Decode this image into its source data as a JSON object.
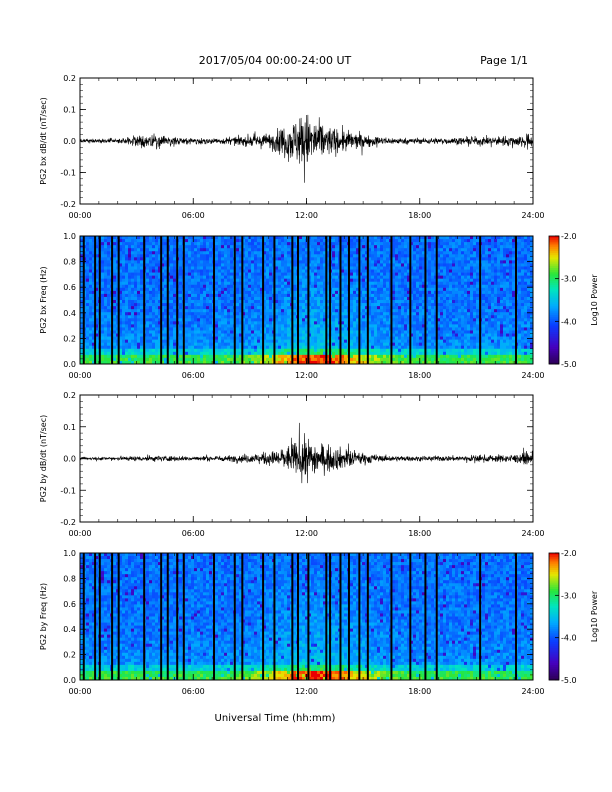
{
  "header": {
    "title": "2017/05/04  00:00-24:00 UT",
    "page": "Page 1/1"
  },
  "x_axis": {
    "label": "Universal Time (hh:mm)",
    "ticks": [
      "00:00",
      "06:00",
      "12:00",
      "18:00",
      "24:00"
    ]
  },
  "chart_data": [
    {
      "type": "line",
      "ylabel": "PG2 bx dB/dt (nT/sec)",
      "xlim": [
        0,
        24
      ],
      "ylim": [
        -0.2,
        0.2
      ],
      "yticks": [
        "0.2",
        "0.1",
        "0.0",
        "-0.1",
        "-0.2"
      ],
      "series": [
        {
          "x": [
            0,
            1,
            2,
            3,
            4,
            5,
            6,
            7,
            8,
            9,
            10,
            10.5,
            11,
            11.5,
            12,
            12.5,
            13,
            13.5,
            14,
            14.5,
            15,
            16,
            17,
            18,
            19,
            20,
            21,
            22,
            23,
            24
          ],
          "amplitude": [
            0.006,
            0.008,
            0.012,
            0.02,
            0.025,
            0.018,
            0.012,
            0.012,
            0.014,
            0.022,
            0.03,
            0.045,
            0.07,
            0.09,
            0.11,
            0.085,
            0.065,
            0.05,
            0.045,
            0.035,
            0.025,
            0.015,
            0.012,
            0.011,
            0.012,
            0.013,
            0.016,
            0.018,
            0.02,
            0.03
          ]
        }
      ]
    },
    {
      "type": "heatmap",
      "ylabel": "PG2 bx Freq (Hz)",
      "xlim": [
        0,
        24
      ],
      "ylim": [
        0,
        1.0
      ],
      "yticks": [
        "1.0",
        "0.8",
        "0.6",
        "0.4",
        "0.2",
        "0.0"
      ],
      "colorbar": {
        "label": "Log10 Power",
        "ticks": [
          "-2.0",
          "-3.0",
          "-4.0",
          "-5.0"
        ],
        "range": [
          -5.0,
          -2.0
        ]
      },
      "gaps_hours": [
        0.2,
        0.8,
        1.05,
        1.7,
        2.05,
        3.4,
        4.3,
        4.65,
        5.15,
        5.5,
        7.1,
        8.2,
        8.6,
        9.7,
        10.3,
        11.25,
        11.55,
        12.1,
        13.05,
        13.25,
        13.8,
        14.25,
        14.8,
        15.25,
        16.5,
        17.5,
        18.3,
        18.9,
        21.2,
        23.1
      ]
    },
    {
      "type": "line",
      "ylabel": "PG2 by dB/dt (nT/sec)",
      "xlim": [
        0,
        24
      ],
      "ylim": [
        -0.2,
        0.2
      ],
      "yticks": [
        "0.2",
        "0.1",
        "0.0",
        "-0.1",
        "-0.2"
      ],
      "series": [
        {
          "x": [
            0,
            1,
            2,
            3,
            4,
            5,
            6,
            7,
            8,
            9,
            10,
            10.5,
            11,
            11.5,
            12,
            12.5,
            13,
            13.5,
            14,
            14.5,
            15,
            16,
            17,
            18,
            19,
            20,
            21,
            22,
            23,
            24
          ],
          "amplitude": [
            0.005,
            0.006,
            0.008,
            0.01,
            0.012,
            0.01,
            0.009,
            0.01,
            0.012,
            0.018,
            0.025,
            0.035,
            0.05,
            0.065,
            0.085,
            0.065,
            0.05,
            0.045,
            0.04,
            0.032,
            0.022,
            0.012,
            0.01,
            0.009,
            0.01,
            0.011,
            0.014,
            0.014,
            0.016,
            0.025
          ]
        }
      ]
    },
    {
      "type": "heatmap",
      "ylabel": "PG2 by Freq (Hz)",
      "xlim": [
        0,
        24
      ],
      "ylim": [
        0,
        1.0
      ],
      "yticks": [
        "1.0",
        "0.8",
        "0.6",
        "0.4",
        "0.2",
        "0.0"
      ],
      "colorbar": {
        "label": "Log10 Power",
        "ticks": [
          "-2.0",
          "-3.0",
          "-4.0",
          "-5.0"
        ],
        "range": [
          -5.0,
          -2.0
        ]
      },
      "gaps_hours": [
        0.2,
        0.8,
        1.05,
        1.7,
        2.05,
        3.4,
        4.3,
        4.65,
        5.15,
        5.5,
        7.1,
        8.2,
        8.6,
        9.7,
        10.3,
        11.25,
        11.55,
        12.1,
        13.05,
        13.25,
        13.8,
        14.25,
        14.8,
        15.25,
        16.5,
        17.5,
        18.3,
        18.9,
        21.2,
        23.1
      ]
    }
  ]
}
